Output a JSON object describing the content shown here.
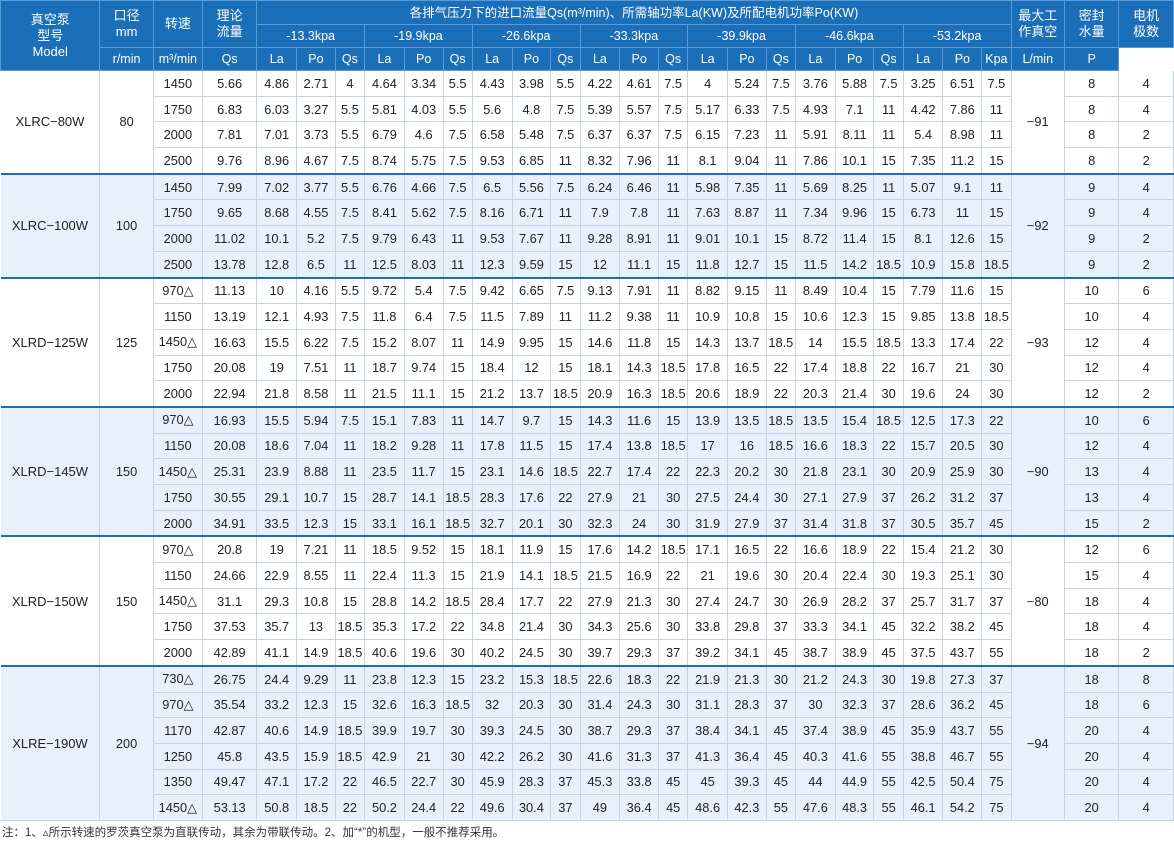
{
  "header": {
    "model": [
      "真空泵",
      "型号",
      "Model"
    ],
    "caliber": [
      "口径",
      "mm"
    ],
    "speed": "转速",
    "speed_unit": "r/min",
    "flow": [
      "理论",
      "流量"
    ],
    "flow_unit": "m³/min",
    "group_title": "各排气压力下的进口流量Qs(m³/min)、所需轴功率La(KW)及所配电机功率Po(KW)",
    "pressures": [
      "-13.3kpa",
      "-19.9kpa",
      "-26.6kpa",
      "-33.3kpa",
      "-39.9kpa",
      "-46.6kpa",
      "-53.2kpa"
    ],
    "sub_cols": [
      "Qs",
      "La",
      "Po"
    ],
    "max_vac": [
      "最大工",
      "作真空"
    ],
    "max_vac_unit": "Kpa",
    "seal_water": [
      "密封",
      "水量"
    ],
    "seal_water_unit": "L/min",
    "poles": [
      "电机",
      "极数"
    ],
    "poles_unit": "P"
  },
  "groups": [
    {
      "model": "XLRC−80W",
      "caliber": "80",
      "vacuum": "−91",
      "rows": [
        {
          "speed": "1450",
          "flow": "5.66",
          "v": [
            "4.86",
            "2.71",
            "4",
            "4.64",
            "3.34",
            "5.5",
            "4.43",
            "3.98",
            "5.5",
            "4.22",
            "4.61",
            "7.5",
            "4",
            "5.24",
            "7.5",
            "3.76",
            "5.88",
            "7.5",
            "3.25",
            "6.51",
            "7.5"
          ],
          "water": "8",
          "poles": "4"
        },
        {
          "speed": "1750",
          "flow": "6.83",
          "v": [
            "6.03",
            "3.27",
            "5.5",
            "5.81",
            "4.03",
            "5.5",
            "5.6",
            "4.8",
            "7.5",
            "5.39",
            "5.57",
            "7.5",
            "5.17",
            "6.33",
            "7.5",
            "4.93",
            "7.1",
            "11",
            "4.42",
            "7.86",
            "11"
          ],
          "water": "8",
          "poles": "4"
        },
        {
          "speed": "2000",
          "flow": "7.81",
          "v": [
            "7.01",
            "3.73",
            "5.5",
            "6.79",
            "4.6",
            "7.5",
            "6.58",
            "5.48",
            "7.5",
            "6.37",
            "6.37",
            "7.5",
            "6.15",
            "7.23",
            "11",
            "5.91",
            "8.11",
            "11",
            "5.4",
            "8.98",
            "11"
          ],
          "water": "8",
          "poles": "2"
        },
        {
          "speed": "2500",
          "flow": "9.76",
          "v": [
            "8.96",
            "4.67",
            "7.5",
            "8.74",
            "5.75",
            "7.5",
            "9.53",
            "6.85",
            "11",
            "8.32",
            "7.96",
            "11",
            "8.1",
            "9.04",
            "11",
            "7.86",
            "10.1",
            "15",
            "7.35",
            "11.2",
            "15"
          ],
          "water": "8",
          "poles": "2"
        }
      ]
    },
    {
      "model": "XLRC−100W",
      "caliber": "100",
      "vacuum": "−92",
      "rows": [
        {
          "speed": "1450",
          "flow": "7.99",
          "v": [
            "7.02",
            "3.77",
            "5.5",
            "6.76",
            "4.66",
            "7.5",
            "6.5",
            "5.56",
            "7.5",
            "6.24",
            "6.46",
            "11",
            "5.98",
            "7.35",
            "11",
            "5.69",
            "8.25",
            "11",
            "5.07",
            "9.1",
            "11"
          ],
          "water": "9",
          "poles": "4"
        },
        {
          "speed": "1750",
          "flow": "9.65",
          "v": [
            "8.68",
            "4.55",
            "7.5",
            "8.41",
            "5.62",
            "7.5",
            "8.16",
            "6.71",
            "11",
            "7.9",
            "7.8",
            "11",
            "7.63",
            "8.87",
            "11",
            "7.34",
            "9.96",
            "15",
            "6.73",
            "11",
            "15"
          ],
          "water": "9",
          "poles": "4"
        },
        {
          "speed": "2000",
          "flow": "11.02",
          "v": [
            "10.1",
            "5.2",
            "7.5",
            "9.79",
            "6.43",
            "11",
            "9.53",
            "7.67",
            "11",
            "9.28",
            "8.91",
            "11",
            "9.01",
            "10.1",
            "15",
            "8.72",
            "11.4",
            "15",
            "8.1",
            "12.6",
            "15"
          ],
          "water": "9",
          "poles": "2"
        },
        {
          "speed": "2500",
          "flow": "13.78",
          "v": [
            "12.8",
            "6.5",
            "11",
            "12.5",
            "8.03",
            "11",
            "12.3",
            "9.59",
            "15",
            "12",
            "11.1",
            "15",
            "11.8",
            "12.7",
            "15",
            "11.5",
            "14.2",
            "18.5",
            "10.9",
            "15.8",
            "18.5"
          ],
          "water": "9",
          "poles": "2"
        }
      ]
    },
    {
      "model": "XLRD−125W",
      "caliber": "125",
      "vacuum": "−93",
      "rows": [
        {
          "speed": "970△",
          "flow": "11.13",
          "v": [
            "10",
            "4.16",
            "5.5",
            "9.72",
            "5.4",
            "7.5",
            "9.42",
            "6.65",
            "7.5",
            "9.13",
            "7.91",
            "11",
            "8.82",
            "9.15",
            "11",
            "8.49",
            "10.4",
            "15",
            "7.79",
            "11.6",
            "15"
          ],
          "water": "10",
          "poles": "6"
        },
        {
          "speed": "1150",
          "flow": "13.19",
          "v": [
            "12.1",
            "4.93",
            "7.5",
            "11.8",
            "6.4",
            "7.5",
            "11.5",
            "7.89",
            "11",
            "11.2",
            "9.38",
            "11",
            "10.9",
            "10.8",
            "15",
            "10.6",
            "12.3",
            "15",
            "9.85",
            "13.8",
            "18.5"
          ],
          "water": "10",
          "poles": "4"
        },
        {
          "speed": "1450△",
          "flow": "16.63",
          "v": [
            "15.5",
            "6.22",
            "7.5",
            "15.2",
            "8.07",
            "11",
            "14.9",
            "9.95",
            "15",
            "14.6",
            "11.8",
            "15",
            "14.3",
            "13.7",
            "18.5",
            "14",
            "15.5",
            "18.5",
            "13.3",
            "17.4",
            "22"
          ],
          "water": "12",
          "poles": "4"
        },
        {
          "speed": "1750",
          "flow": "20.08",
          "v": [
            "19",
            "7.51",
            "11",
            "18.7",
            "9.74",
            "15",
            "18.4",
            "12",
            "15",
            "18.1",
            "14.3",
            "18.5",
            "17.8",
            "16.5",
            "22",
            "17.4",
            "18.8",
            "22",
            "16.7",
            "21",
            "30"
          ],
          "water": "12",
          "poles": "4"
        },
        {
          "speed": "2000",
          "flow": "22.94",
          "v": [
            "21.8",
            "8.58",
            "11",
            "21.5",
            "11.1",
            "15",
            "21.2",
            "13.7",
            "18.5",
            "20.9",
            "16.3",
            "18.5",
            "20.6",
            "18.9",
            "22",
            "20.3",
            "21.4",
            "30",
            "19.6",
            "24",
            "30"
          ],
          "water": "12",
          "poles": "2"
        }
      ]
    },
    {
      "model": "XLRD−145W",
      "caliber": "150",
      "vacuum": "−90",
      "rows": [
        {
          "speed": "970△",
          "flow": "16.93",
          "v": [
            "15.5",
            "5.94",
            "7.5",
            "15.1",
            "7.83",
            "11",
            "14.7",
            "9.7",
            "15",
            "14.3",
            "11.6",
            "15",
            "13.9",
            "13.5",
            "18.5",
            "13.5",
            "15.4",
            "18.5",
            "12.5",
            "17.3",
            "22"
          ],
          "water": "10",
          "poles": "6"
        },
        {
          "speed": "1150",
          "flow": "20.08",
          "v": [
            "18.6",
            "7.04",
            "11",
            "18.2",
            "9.28",
            "11",
            "17.8",
            "11.5",
            "15",
            "17.4",
            "13.8",
            "18.5",
            "17",
            "16",
            "18.5",
            "16.6",
            "18.3",
            "22",
            "15.7",
            "20.5",
            "30"
          ],
          "water": "12",
          "poles": "4"
        },
        {
          "speed": "1450△",
          "flow": "25.31",
          "v": [
            "23.9",
            "8.88",
            "11",
            "23.5",
            "11.7",
            "15",
            "23.1",
            "14.6",
            "18.5",
            "22.7",
            "17.4",
            "22",
            "22.3",
            "20.2",
            "30",
            "21.8",
            "23.1",
            "30",
            "20.9",
            "25.9",
            "30"
          ],
          "water": "13",
          "poles": "4"
        },
        {
          "speed": "1750",
          "flow": "30.55",
          "v": [
            "29.1",
            "10.7",
            "15",
            "28.7",
            "14.1",
            "18.5",
            "28.3",
            "17.6",
            "22",
            "27.9",
            "21",
            "30",
            "27.5",
            "24.4",
            "30",
            "27.1",
            "27.9",
            "37",
            "26.2",
            "31.2",
            "37"
          ],
          "water": "13",
          "poles": "4"
        },
        {
          "speed": "2000",
          "flow": "34.91",
          "v": [
            "33.5",
            "12.3",
            "15",
            "33.1",
            "16.1",
            "18.5",
            "32.7",
            "20.1",
            "30",
            "32.3",
            "24",
            "30",
            "31.9",
            "27.9",
            "37",
            "31.4",
            "31.8",
            "37",
            "30.5",
            "35.7",
            "45"
          ],
          "water": "15",
          "poles": "2"
        }
      ]
    },
    {
      "model": "XLRD−150W",
      "caliber": "150",
      "vacuum": "−80",
      "rows": [
        {
          "speed": "970△",
          "flow": "20.8",
          "v": [
            "19",
            "7.21",
            "11",
            "18.5",
            "9.52",
            "15",
            "18.1",
            "11.9",
            "15",
            "17.6",
            "14.2",
            "18.5",
            "17.1",
            "16.5",
            "22",
            "16.6",
            "18.9",
            "22",
            "15.4",
            "21.2",
            "30"
          ],
          "water": "12",
          "poles": "6"
        },
        {
          "speed": "1150",
          "flow": "24.66",
          "v": [
            "22.9",
            "8.55",
            "11",
            "22.4",
            "11.3",
            "15",
            "21.9",
            "14.1",
            "18.5",
            "21.5",
            "16.9",
            "22",
            "21",
            "19.6",
            "30",
            "20.4",
            "22.4",
            "30",
            "19.3",
            "25.1",
            "30"
          ],
          "water": "15",
          "poles": "4"
        },
        {
          "speed": "1450△",
          "flow": "31.1",
          "v": [
            "29.3",
            "10.8",
            "15",
            "28.8",
            "14.2",
            "18.5",
            "28.4",
            "17.7",
            "22",
            "27.9",
            "21.3",
            "30",
            "27.4",
            "24.7",
            "30",
            "26.9",
            "28.2",
            "37",
            "25.7",
            "31.7",
            "37"
          ],
          "water": "18",
          "poles": "4"
        },
        {
          "speed": "1750",
          "flow": "37.53",
          "v": [
            "35.7",
            "13",
            "18.5",
            "35.3",
            "17.2",
            "22",
            "34.8",
            "21.4",
            "30",
            "34.3",
            "25.6",
            "30",
            "33.8",
            "29.8",
            "37",
            "33.3",
            "34.1",
            "45",
            "32.2",
            "38.2",
            "45"
          ],
          "water": "18",
          "poles": "4"
        },
        {
          "speed": "2000",
          "flow": "42.89",
          "v": [
            "41.1",
            "14.9",
            "18.5",
            "40.6",
            "19.6",
            "30",
            "40.2",
            "24.5",
            "30",
            "39.7",
            "29.3",
            "37",
            "39.2",
            "34.1",
            "45",
            "38.7",
            "38.9",
            "45",
            "37.5",
            "43.7",
            "55"
          ],
          "water": "18",
          "poles": "2"
        }
      ]
    },
    {
      "model": "XLRE−190W",
      "caliber": "200",
      "vacuum": "−94",
      "rows": [
        {
          "speed": "730△",
          "flow": "26.75",
          "v": [
            "24.4",
            "9.29",
            "11",
            "23.8",
            "12.3",
            "15",
            "23.2",
            "15.3",
            "18.5",
            "22.6",
            "18.3",
            "22",
            "21.9",
            "21.3",
            "30",
            "21.2",
            "24.3",
            "30",
            "19.8",
            "27.3",
            "37"
          ],
          "water": "18",
          "poles": "8"
        },
        {
          "speed": "970△",
          "flow": "35.54",
          "v": [
            "33.2",
            "12.3",
            "15",
            "32.6",
            "16.3",
            "18.5",
            "32",
            "20.3",
            "30",
            "31.4",
            "24.3",
            "30",
            "31.1",
            "28.3",
            "37",
            "30",
            "32.3",
            "37",
            "28.6",
            "36.2",
            "45"
          ],
          "water": "18",
          "poles": "6"
        },
        {
          "speed": "1170",
          "flow": "42.87",
          "v": [
            "40.6",
            "14.9",
            "18.5",
            "39.9",
            "19.7",
            "30",
            "39.3",
            "24.5",
            "30",
            "38.7",
            "29.3",
            "37",
            "38.4",
            "34.1",
            "45",
            "37.4",
            "38.9",
            "45",
            "35.9",
            "43.7",
            "55"
          ],
          "water": "20",
          "poles": "4"
        },
        {
          "speed": "1250",
          "flow": "45.8",
          "v": [
            "43.5",
            "15.9",
            "18.5",
            "42.9",
            "21",
            "30",
            "42.2",
            "26.2",
            "30",
            "41.6",
            "31.3",
            "37",
            "41.3",
            "36.4",
            "45",
            "40.3",
            "41.6",
            "55",
            "38.8",
            "46.7",
            "55"
          ],
          "water": "20",
          "poles": "4"
        },
        {
          "speed": "1350",
          "flow": "49.47",
          "v": [
            "47.1",
            "17.2",
            "22",
            "46.5",
            "22.7",
            "30",
            "45.9",
            "28.3",
            "37",
            "45.3",
            "33.8",
            "45",
            "45",
            "39.3",
            "45",
            "44",
            "44.9",
            "55",
            "42.5",
            "50.4",
            "75"
          ],
          "water": "20",
          "poles": "4"
        },
        {
          "speed": "1450△",
          "flow": "53.13",
          "v": [
            "50.8",
            "18.5",
            "22",
            "50.2",
            "24.4",
            "22",
            "49.6",
            "30.4",
            "37",
            "49",
            "36.4",
            "45",
            "48.6",
            "42.3",
            "55",
            "47.6",
            "48.3",
            "55",
            "46.1",
            "54.2",
            "75"
          ],
          "water": "20",
          "poles": "4"
        }
      ]
    }
  ],
  "note": "注：1、▵所示转速的罗茨真空泵为直联传动，其余为带联传动。2、加“*”的机型，一般不推荐采用。"
}
